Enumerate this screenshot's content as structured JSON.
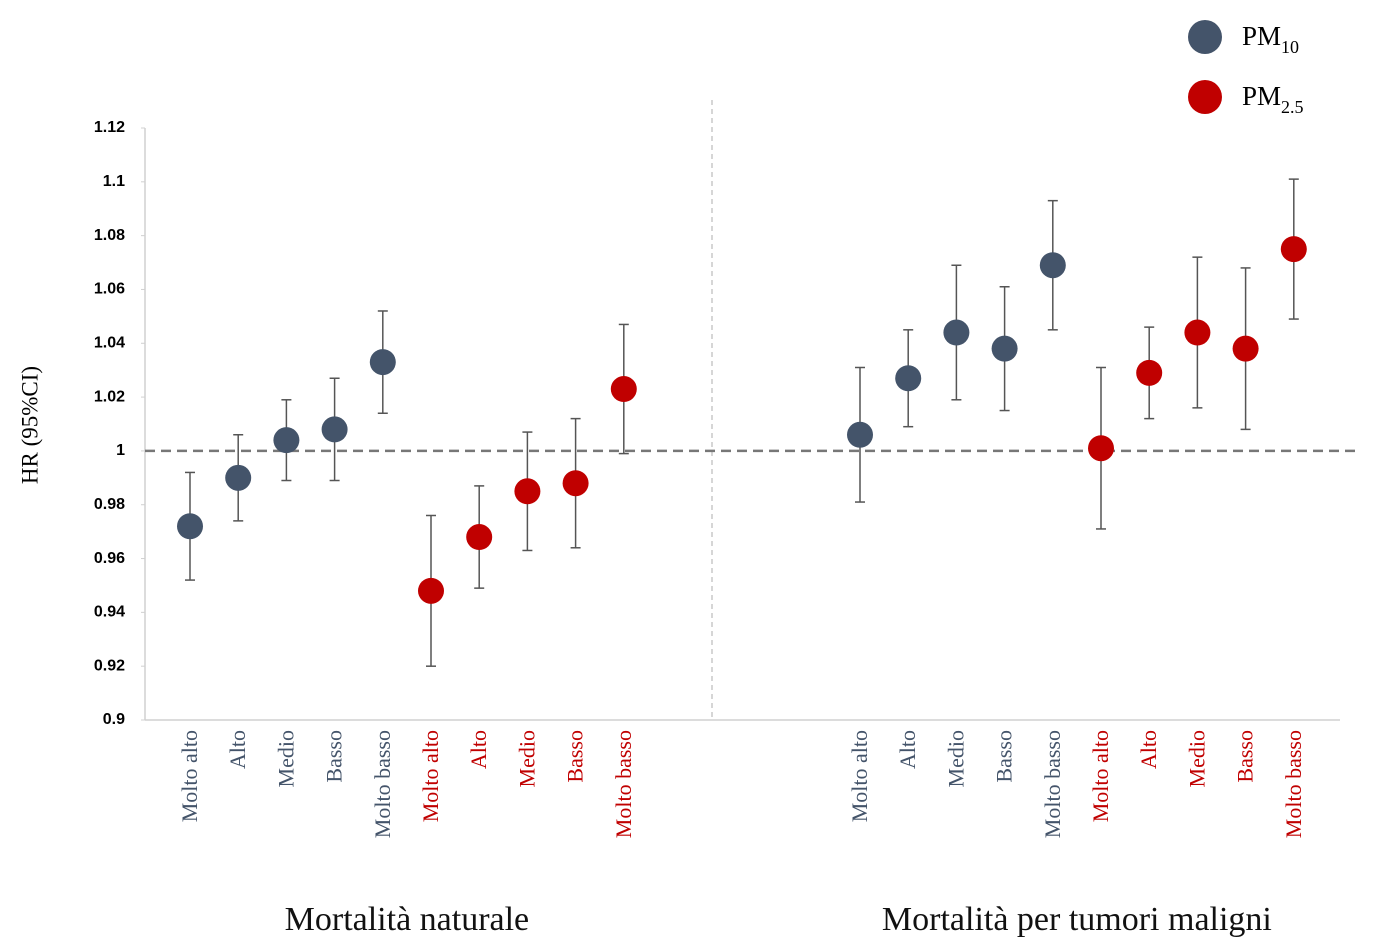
{
  "chart_data": {
    "type": "dotplot",
    "ylabel": "HR (95%CI)",
    "ylim": [
      0.9,
      1.12
    ],
    "yticks": [
      0.9,
      0.92,
      0.94,
      0.96,
      0.98,
      1,
      1.02,
      1.04,
      1.06,
      1.08,
      1.1,
      1.12
    ],
    "reference_line": 1,
    "series": [
      {
        "name": "PM",
        "subscript": "10",
        "color": "#44546a"
      },
      {
        "name": "PM",
        "subscript": "2.5",
        "color": "#c00000"
      }
    ],
    "groups": [
      {
        "label": "Mortalità naturale",
        "categories": [
          "Molto alto",
          "Alto",
          "Medio",
          "Basso",
          "Molto basso"
        ],
        "values": [
          [
            0.972,
            0.99,
            1.004,
            1.008,
            1.033
          ],
          [
            0.948,
            0.968,
            0.985,
            0.988,
            1.023
          ]
        ],
        "ci_low": [
          [
            0.952,
            0.974,
            0.989,
            0.989,
            1.014
          ],
          [
            0.92,
            0.949,
            0.963,
            0.964,
            0.999
          ]
        ],
        "ci_high": [
          [
            0.992,
            1.006,
            1.019,
            1.027,
            1.052
          ],
          [
            0.976,
            0.987,
            1.007,
            1.012,
            1.047
          ]
        ]
      },
      {
        "label": "Mortalità per tumori maligni",
        "categories": [
          "Molto alto",
          "Alto",
          "Medio",
          "Basso",
          "Molto basso"
        ],
        "values": [
          [
            1.006,
            1.027,
            1.044,
            1.038,
            1.069
          ],
          [
            1.001,
            1.029,
            1.044,
            1.038,
            1.075
          ]
        ],
        "ci_low": [
          [
            0.981,
            1.009,
            1.019,
            1.015,
            1.045
          ],
          [
            0.971,
            1.012,
            1.016,
            1.008,
            1.049
          ]
        ],
        "ci_high": [
          [
            1.031,
            1.045,
            1.069,
            1.061,
            1.093
          ],
          [
            1.031,
            1.046,
            1.072,
            1.068,
            1.101
          ]
        ]
      }
    ]
  }
}
